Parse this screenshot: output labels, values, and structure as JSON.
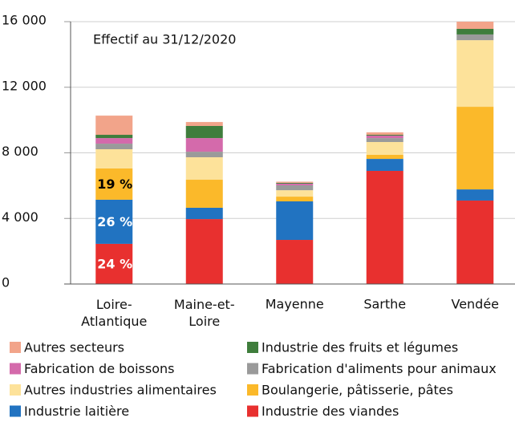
{
  "chart_data": {
    "type": "stacked_bar",
    "annotation": "Effectif au 31/12/2020",
    "categories": [
      "Loire-Atlantique",
      "Maine-et-Loire",
      "Mayenne",
      "Sarthe",
      "Vendée"
    ],
    "series": [
      {
        "name": "Industrie des viandes",
        "color": "#e8302f",
        "values": [
          2450,
          3960,
          2690,
          6900,
          5090
        ],
        "percent_labels": [
          "24 %",
          null,
          null,
          null,
          null
        ],
        "label_color": "#ffffff"
      },
      {
        "name": "Industrie laitière",
        "color": "#2173c1",
        "values": [
          2690,
          690,
          2350,
          730,
          680
        ],
        "percent_labels": [
          "26 %",
          null,
          null,
          null,
          null
        ],
        "label_color": "#ffffff"
      },
      {
        "name": "Boulangerie, pâtisserie, pâtes",
        "color": "#fbb92a",
        "values": [
          1910,
          1710,
          290,
          250,
          5040
        ],
        "percent_labels": [
          "19 %",
          null,
          null,
          null,
          null
        ],
        "label_color": "#000000"
      },
      {
        "name": "Autres industries alimentaires",
        "color": "#fde29a",
        "values": [
          1170,
          1370,
          390,
          780,
          4060
        ]
      },
      {
        "name": "Fabrication d'aliments pour animaux",
        "color": "#9a9a9a",
        "values": [
          340,
          340,
          300,
          240,
          350
        ]
      },
      {
        "name": "Fabrication de boissons",
        "color": "#d46aab",
        "values": [
          340,
          830,
          100,
          150,
          0
        ]
      },
      {
        "name": "Industrie des fruits et légumes",
        "color": "#3f7d3c",
        "values": [
          200,
          740,
          50,
          50,
          340
        ]
      },
      {
        "name": "Autres secteurs",
        "color": "#f2a48a",
        "values": [
          1170,
          240,
          70,
          150,
          440
        ]
      }
    ],
    "ylim": [
      0,
      16000
    ],
    "yticks": [
      0,
      {
        "value": 4000,
        "label": "4 000"
      },
      {
        "value": 8000,
        "label": "8 000"
      },
      {
        "value": 12000,
        "label": "12 000"
      },
      {
        "value": 16000,
        "label": "16 000"
      }
    ],
    "grid": true
  }
}
